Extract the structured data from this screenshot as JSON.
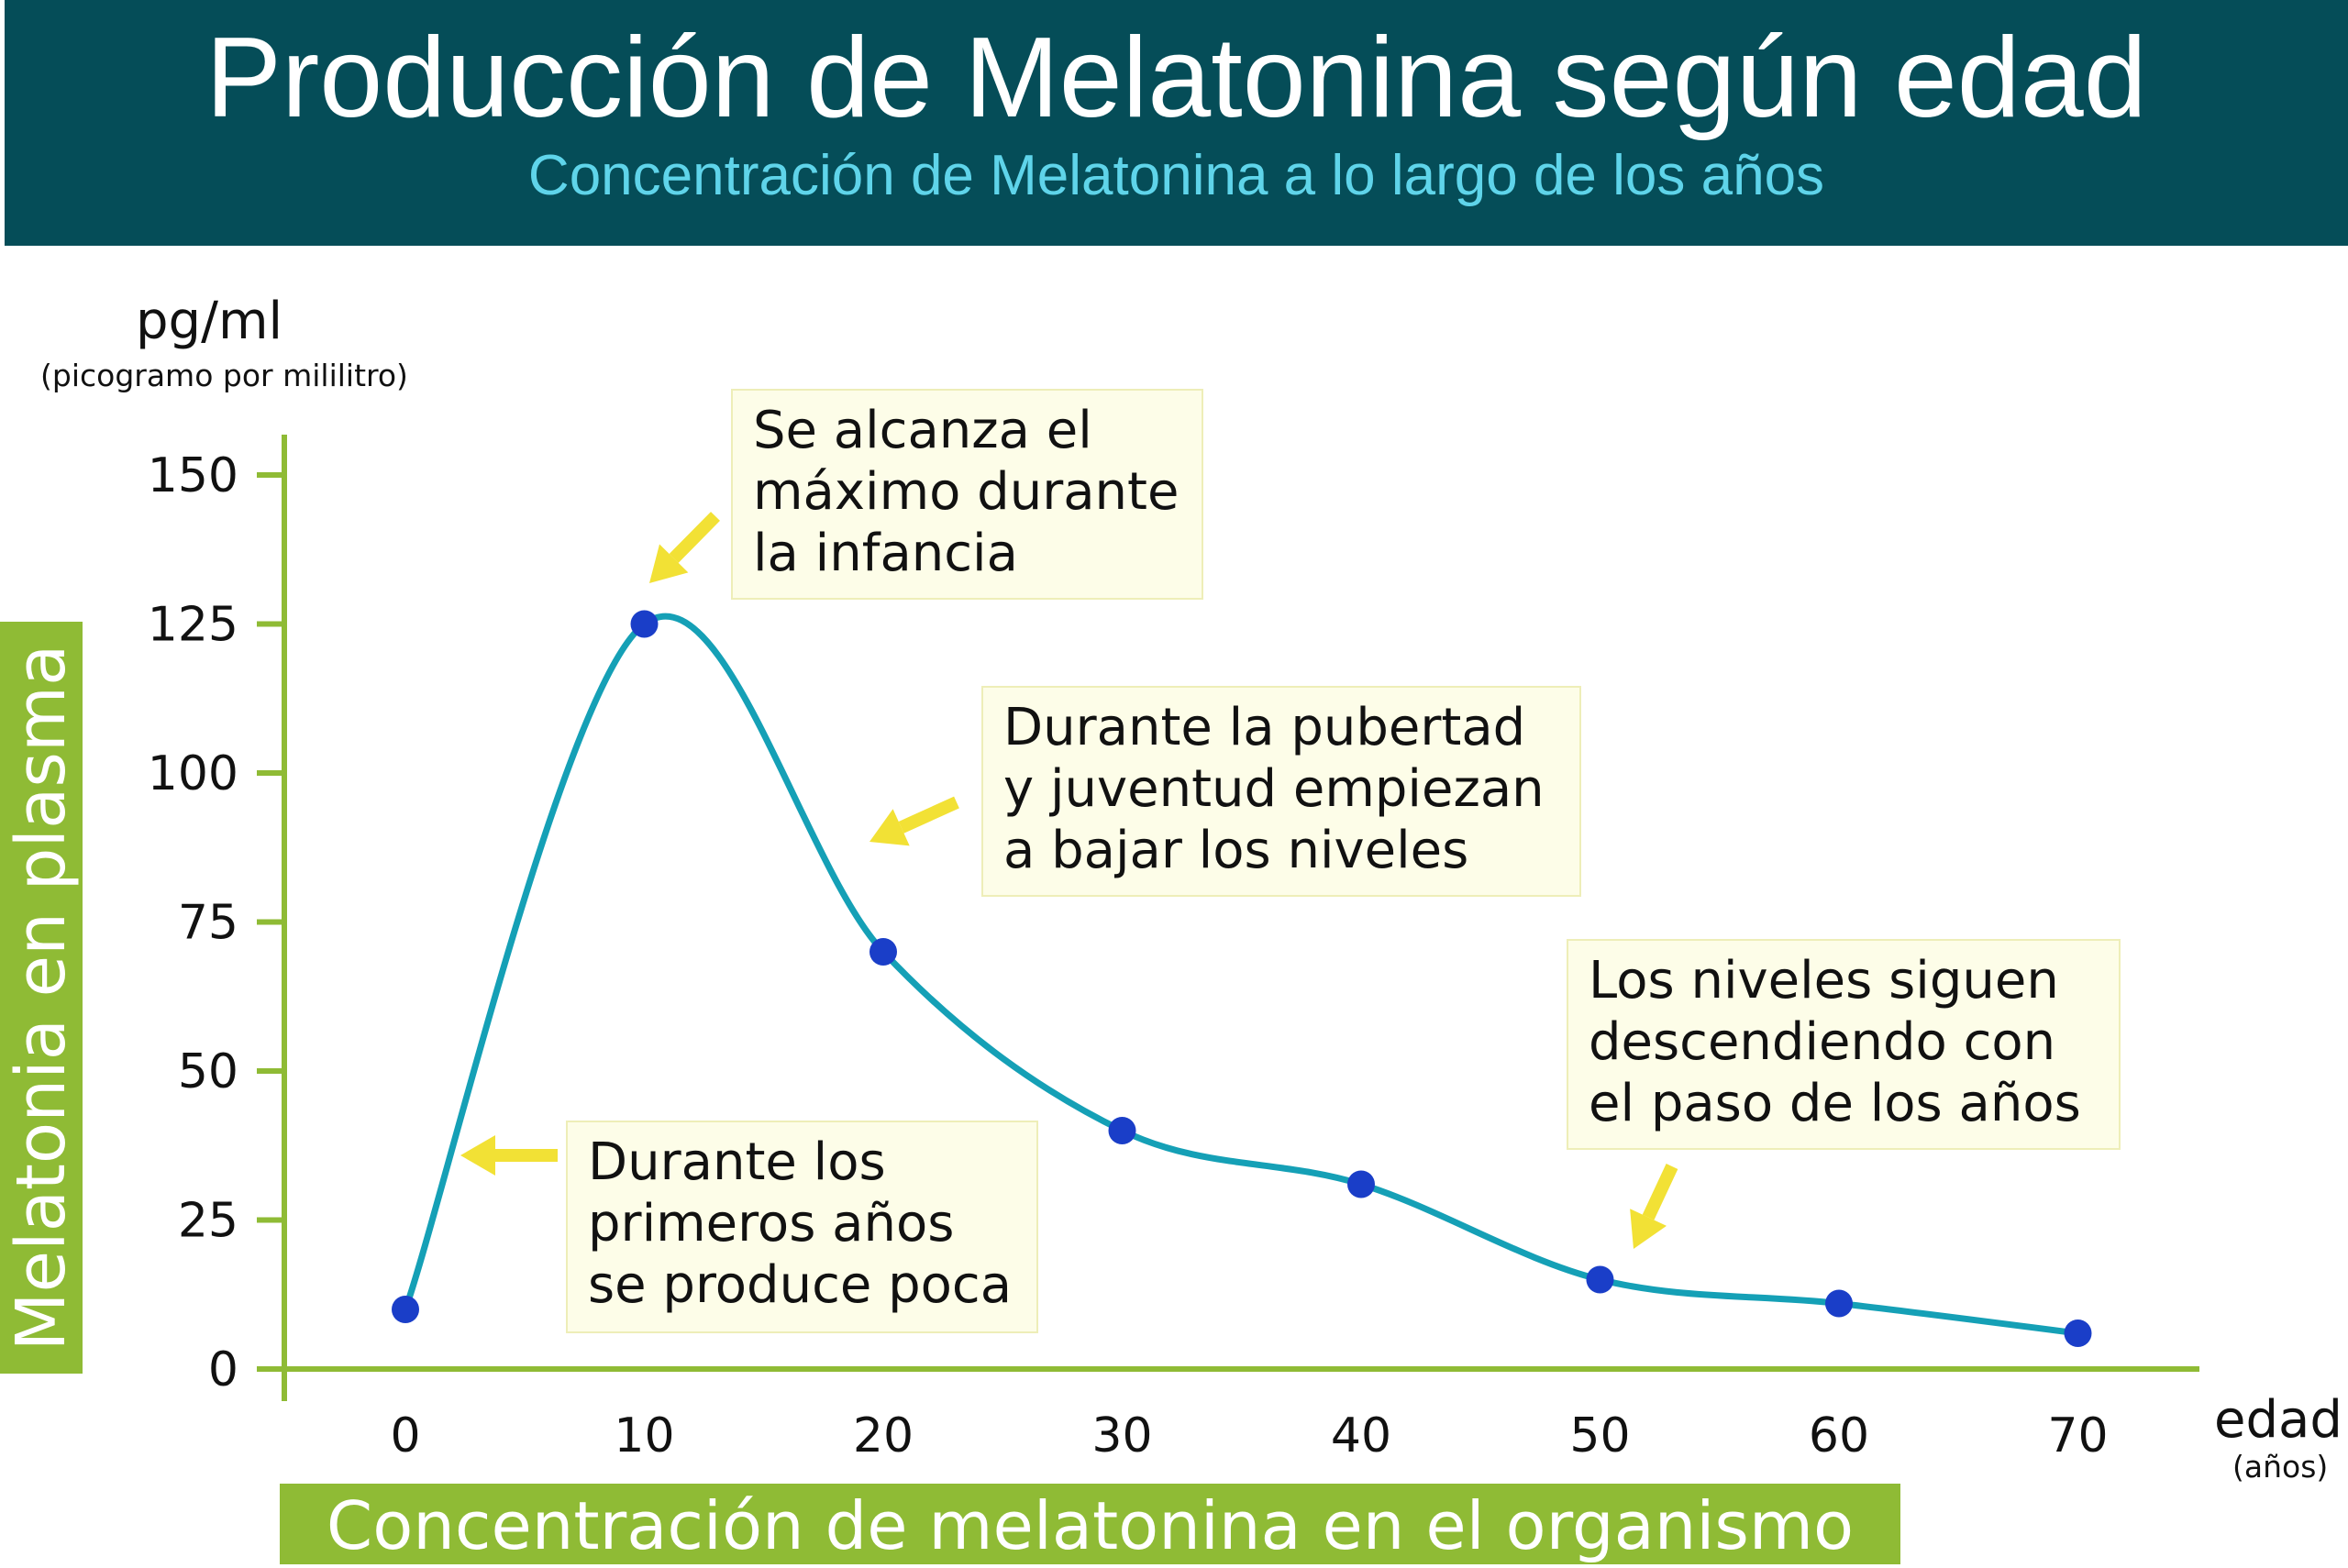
{
  "header": {
    "title": "Producción de Melatonina según edad",
    "subtitle": "Concentración de Melatonina a lo largo de los años"
  },
  "y_unit": {
    "main": "pg/ml",
    "detail": "(picogramo por mililitro)"
  },
  "x_unit": {
    "main": "edad",
    "detail": "(años)"
  },
  "side_label": "Melatonia en plasma",
  "bottom_label": "Concentración de melatonina en el organismo",
  "notes": [
    {
      "lines": [
        "Se alcanza el",
        "máximo durante",
        "la infancia"
      ]
    },
    {
      "lines": [
        "Durante la pubertad",
        "y juventud empiezan",
        "a bajar los niveles"
      ]
    },
    {
      "lines": [
        "Los niveles siguen",
        "descendiendo con",
        "el paso de los años"
      ]
    },
    {
      "lines": [
        "Durante los",
        "primeros años",
        "se produce poca"
      ]
    }
  ],
  "colors": {
    "header_bg": "#054d58",
    "subtitle": "#5fd4ea",
    "label_bg": "#8fbb35",
    "axis": "#8fbb35",
    "curve": "#15a0b6",
    "points": "#1a3ec8",
    "arrows": "#f2e135",
    "note_bg": "#fdfde8"
  },
  "chart_data": {
    "type": "line",
    "x": [
      0,
      10,
      20,
      30,
      40,
      50,
      60,
      70
    ],
    "series": [
      {
        "values": [
          10,
          125,
          70,
          40,
          31,
          15,
          11,
          6
        ]
      }
    ],
    "x_ticks": [
      "0",
      "10",
      "20",
      "30",
      "40",
      "50",
      "60",
      "70"
    ],
    "y_ticks": [
      "0",
      "25",
      "50",
      "75",
      "100",
      "125",
      "150"
    ],
    "xlabel": "edad",
    "ylabel": "pg/ml",
    "xlim": [
      -5,
      75
    ],
    "ylim": [
      0,
      150
    ],
    "smooth": true,
    "grid": false
  }
}
